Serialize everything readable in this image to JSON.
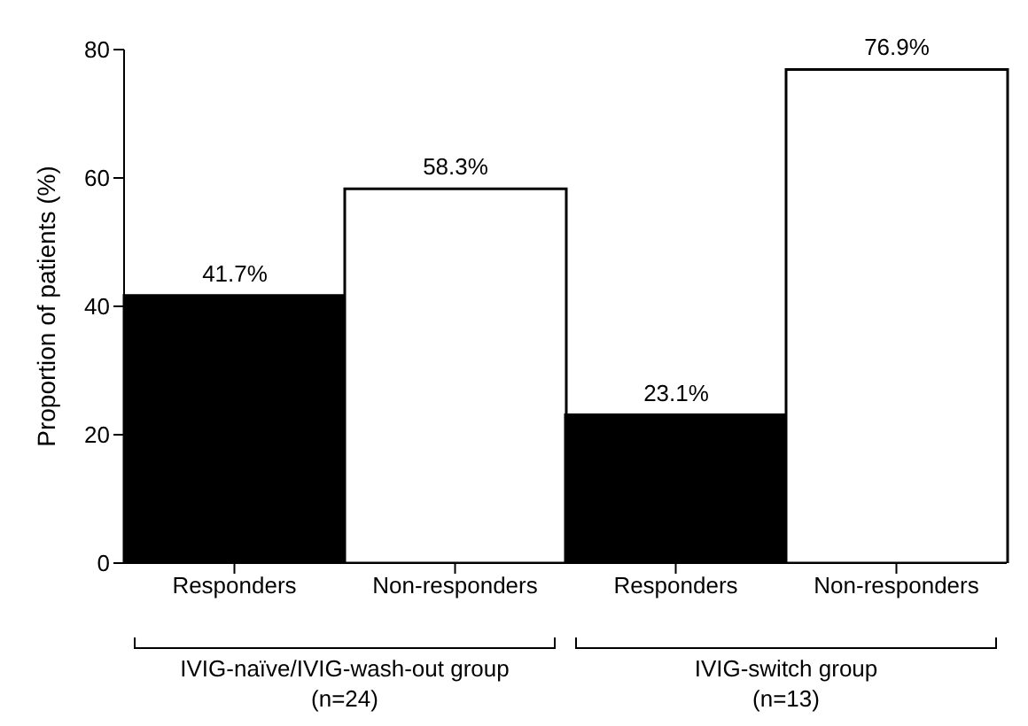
{
  "chart_data": {
    "type": "bar",
    "categories": [
      "Responders",
      "Non-responders",
      "Responders",
      "Non-responders"
    ],
    "values": [
      41.7,
      58.3,
      23.1,
      76.9
    ],
    "colors": [
      "#000000",
      "#ffffff",
      "#000000",
      "#ffffff"
    ],
    "value_labels": [
      "41.7%",
      "58.3%",
      "23.1%",
      "76.9%"
    ],
    "ylabel": "Proportion of patients (%)",
    "ylim": [
      0,
      80
    ],
    "yticks": [
      0,
      20,
      40,
      60,
      80
    ],
    "annotations": [
      "IVIG-naïve/IVIG-wash-out group\n(n=24)",
      "IVIG-switch group\n(n=13)"
    ],
    "grid": false,
    "legend": false
  }
}
